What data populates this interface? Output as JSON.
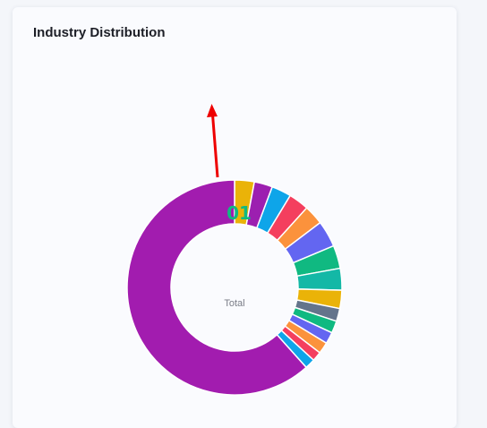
{
  "card": {
    "title": "Industry Distribution"
  },
  "chart_data": {
    "type": "pie",
    "variant": "donut",
    "center_label": "Total",
    "center_value": "01",
    "categories": [
      "",
      "",
      "",
      "",
      "",
      "",
      "",
      "",
      "",
      "",
      "",
      "",
      "",
      "",
      "",
      ""
    ],
    "values": [
      2.9,
      2.7,
      2.9,
      3.0,
      2.9,
      3.9,
      3.4,
      3.2,
      2.7,
      1.9,
      1.8,
      1.7,
      1.7,
      1.4,
      1.5,
      60.4
    ],
    "colors": [
      "#eab308",
      "#9c1fb0",
      "#0ea5e9",
      "#f43f5e",
      "#fb923c",
      "#6366f1",
      "#10b981",
      "#14b8a6",
      "#eab308",
      "#64748b",
      "#10b981",
      "#6366f1",
      "#fb923c",
      "#f43f5e",
      "#0ea5e9",
      "#a21caf"
    ],
    "start_angle_deg": 0,
    "direction": "clockwise",
    "annotation": {
      "type": "arrow",
      "color": "#ee0000"
    }
  }
}
